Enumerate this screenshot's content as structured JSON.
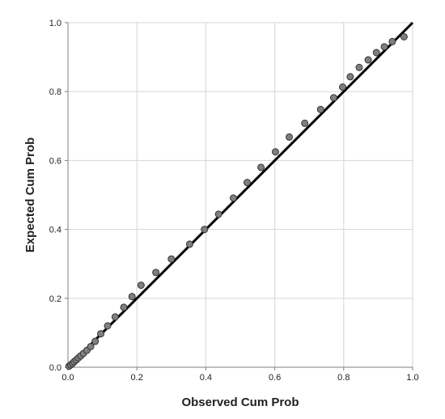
{
  "chart_data": {
    "type": "scatter",
    "title": "",
    "xlabel": "Observed Cum Prob",
    "ylabel": "Expected Cum Prob",
    "xlim": [
      0.0,
      1.0
    ],
    "ylim": [
      0.0,
      1.0
    ],
    "x_ticks": [
      "0.0",
      "0.2",
      "0.4",
      "0.6",
      "0.8",
      "1.0"
    ],
    "y_ticks": [
      "0.0",
      "0.2",
      "0.4",
      "0.6",
      "0.8",
      "1.0"
    ],
    "grid": true,
    "reference_line": {
      "from": [
        0.0,
        0.0
      ],
      "to": [
        1.0,
        1.0
      ]
    },
    "points": [
      [
        0.003,
        0.003
      ],
      [
        0.008,
        0.007
      ],
      [
        0.013,
        0.011
      ],
      [
        0.018,
        0.016
      ],
      [
        0.024,
        0.021
      ],
      [
        0.03,
        0.027
      ],
      [
        0.037,
        0.033
      ],
      [
        0.045,
        0.04
      ],
      [
        0.055,
        0.049
      ],
      [
        0.066,
        0.06
      ],
      [
        0.079,
        0.075
      ],
      [
        0.095,
        0.097
      ],
      [
        0.115,
        0.12
      ],
      [
        0.137,
        0.146
      ],
      [
        0.162,
        0.174
      ],
      [
        0.186,
        0.205
      ],
      [
        0.212,
        0.238
      ],
      [
        0.255,
        0.275
      ],
      [
        0.3,
        0.314
      ],
      [
        0.353,
        0.357
      ],
      [
        0.396,
        0.4
      ],
      [
        0.437,
        0.444
      ],
      [
        0.48,
        0.491
      ],
      [
        0.52,
        0.536
      ],
      [
        0.56,
        0.58
      ],
      [
        0.602,
        0.625
      ],
      [
        0.642,
        0.668
      ],
      [
        0.687,
        0.708
      ],
      [
        0.733,
        0.748
      ],
      [
        0.771,
        0.782
      ],
      [
        0.797,
        0.813
      ],
      [
        0.819,
        0.843
      ],
      [
        0.845,
        0.87
      ],
      [
        0.871,
        0.892
      ],
      [
        0.895,
        0.913
      ],
      [
        0.918,
        0.93
      ],
      [
        0.941,
        0.945
      ],
      [
        0.975,
        0.959
      ]
    ],
    "colors": {
      "point_fill": "#7f7f7f",
      "point_stroke": "#333333",
      "line": "#000000",
      "grid": "#d6d6d6",
      "axis": "#7f7f7f"
    }
  }
}
